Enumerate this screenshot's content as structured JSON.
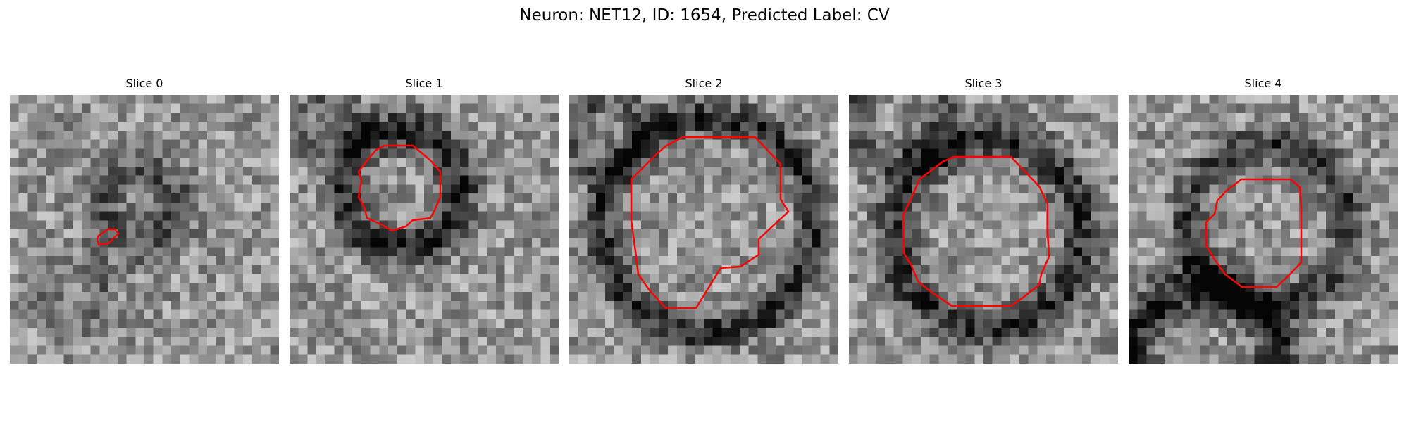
{
  "figure": {
    "title": "Neuron: NET12, ID: 1654, Predicted Label: CV"
  },
  "colors": {
    "contour": "#ff0000",
    "colormap": "gray"
  },
  "slices": [
    {
      "title": "Slice 0",
      "image": "grayscale-em-patch",
      "overlay": "red-contour"
    },
    {
      "title": "Slice 1",
      "image": "grayscale-em-patch",
      "overlay": "red-contour"
    },
    {
      "title": "Slice 2",
      "image": "grayscale-em-patch",
      "overlay": "red-contour"
    },
    {
      "title": "Slice 3",
      "image": "grayscale-em-patch",
      "overlay": "red-contour"
    },
    {
      "title": "Slice 4",
      "image": "grayscale-em-patch",
      "overlay": "red-contour"
    }
  ]
}
